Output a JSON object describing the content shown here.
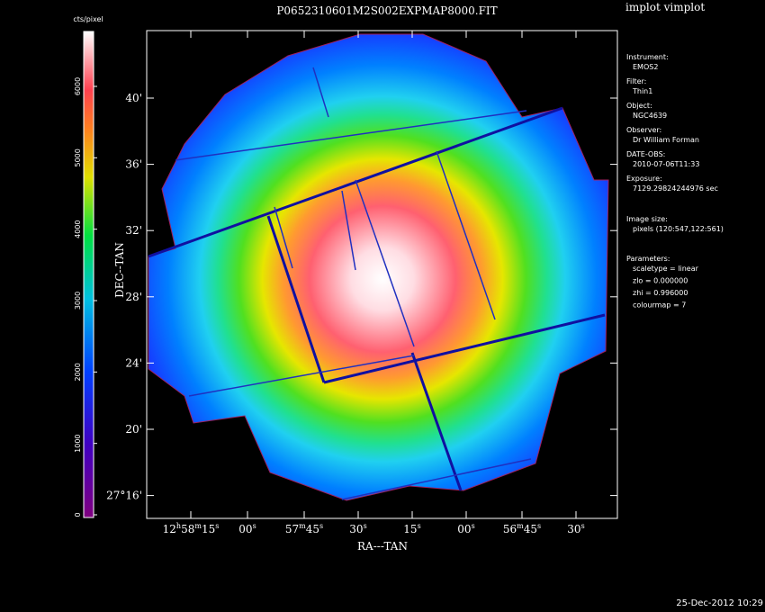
{
  "header": {
    "title": "P0652310601M2S002EXPMAP8000.FIT",
    "tool": "implot vimplot"
  },
  "colorbar": {
    "label": "cts/pixel",
    "ticks": [
      "0",
      "1000",
      "2000",
      "3000",
      "4000",
      "5000",
      "6000"
    ]
  },
  "axes": {
    "x_title": "RA---TAN",
    "y_title": "DEC--TAN",
    "x_ticks": [
      [
        "12",
        "h",
        "58",
        "m",
        "15",
        "s"
      ],
      [
        "00",
        "s"
      ],
      [
        "57",
        "m",
        "45",
        "s"
      ],
      [
        "30",
        "s"
      ],
      [
        "15",
        "s"
      ],
      [
        "00",
        "s"
      ],
      [
        "56",
        "m",
        "45",
        "s"
      ],
      [
        "30",
        "s"
      ]
    ],
    "y_ticks": [
      "40'",
      "36'",
      "32'",
      "28'",
      "24'",
      "20'",
      "27°16'"
    ]
  },
  "info": [
    {
      "key": "Instrument:",
      "lines": [
        "EMOS2"
      ]
    },
    {
      "key": "Filter:",
      "lines": [
        "Thin1"
      ]
    },
    {
      "key": "Object:",
      "lines": [
        "NGC4639"
      ]
    },
    {
      "key": "Observer:",
      "lines": [
        "Dr William Forman"
      ]
    },
    {
      "key": "DATE-OBS:",
      "lines": [
        "2010-07-06T11:33"
      ]
    },
    {
      "key": "Exposure:",
      "lines": [
        "7129.29824244976 sec"
      ]
    },
    {
      "key": "Image size:",
      "lines": [
        "pixels (120:547,122:561)"
      ]
    },
    {
      "key": "Parameters:",
      "lines": [
        "scaletype = linear",
        "zlo = 0.000000",
        "zhi = 0.996000",
        "colourmap =   7"
      ]
    }
  ],
  "footer": {
    "timestamp": "25-Dec-2012 10:29"
  }
}
